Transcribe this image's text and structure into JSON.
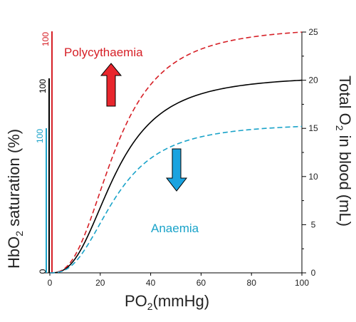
{
  "chart_data": {
    "type": "line",
    "xlabel": "PO",
    "xlabel_sub": "2",
    "xlabel_unit": "(mmHg)",
    "ylabel_left": "HbO",
    "ylabel_left_sub": "2",
    "ylabel_left_rest": " saturation (%)",
    "ylabel_right": "Total O",
    "ylabel_right_sub": "2",
    "ylabel_right_rest": " in blood (mL)",
    "xlim": [
      0,
      100
    ],
    "ylim_right": [
      0,
      25
    ],
    "x_ticks": [
      "0",
      "20",
      "40",
      "60",
      "80",
      "100"
    ],
    "y_right_ticks": [
      "0",
      "5",
      "10",
      "15",
      "20",
      "25"
    ],
    "left_axes": [
      {
        "label_top": "100",
        "label_bottom": "0",
        "color": "#000000"
      },
      {
        "label_top": "100",
        "color": "#d61f26"
      },
      {
        "label_top": "100",
        "color": "#1aa3c9"
      }
    ],
    "series": [
      {
        "style": "solid",
        "color": "#000000",
        "capacity": 20
      },
      {
        "style": "dashed",
        "color": "#d61f26",
        "capacity": 25
      },
      {
        "style": "dashed",
        "color": "#1aa3c9",
        "capacity": 15.2
      }
    ],
    "p50": 26,
    "hill_n": 2.7,
    "annotations": [
      {
        "text": "Polycythaemia",
        "color": "#d61f26"
      },
      {
        "text": "Anaemia",
        "color": "#1aa3c9"
      }
    ],
    "arrows": [
      {
        "direction": "up",
        "color": "#e8262d"
      },
      {
        "direction": "down",
        "color": "#1aa3e0"
      }
    ]
  }
}
